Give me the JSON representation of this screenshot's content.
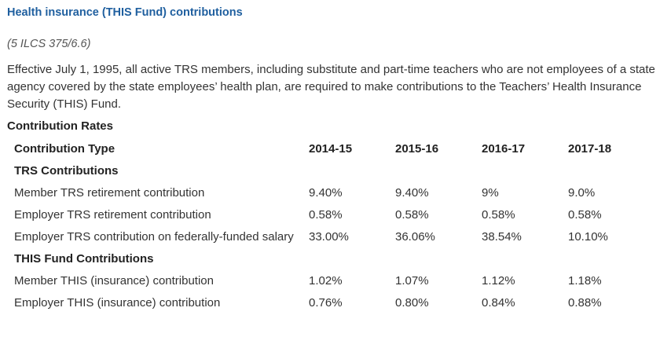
{
  "header": {
    "title": "Health insurance (THIS Fund) contributions",
    "citation": "(5 ILCS 375/6.6)"
  },
  "paragraph": "Effective July 1, 1995, all active TRS members, including substitute and part-time teachers who are not employees of a state agency covered by the state employees’ health plan, are required to make contributions to the Teachers’ Health Insurance Security (THIS) Fund.",
  "table": {
    "caption": "Contribution Rates",
    "columns": [
      "Contribution Type",
      "2014-15",
      "2015-16",
      "2016-17",
      "2017-18"
    ],
    "rows": [
      [
        "TRS Contributions"
      ],
      [
        "Member TRS retirement contribution",
        "9.40%",
        "9.40%",
        "9%",
        "9.0%"
      ],
      [
        "Employer TRS retirement contribution",
        "0.58%",
        "0.58%",
        "0.58%",
        "0.58%"
      ],
      [
        "Employer TRS contribution on federally-funded salary",
        "33.00%",
        "36.06%",
        "38.54%",
        "10.10%"
      ],
      [
        "THIS Fund Contributions"
      ],
      [
        "Member THIS (insurance) contribution",
        "1.02%",
        "1.07%",
        "1.12%",
        "1.18%"
      ],
      [
        "Employer THIS (insurance) contribution",
        "0.76%",
        "0.80%",
        "0.84%",
        "0.88%"
      ]
    ]
  }
}
